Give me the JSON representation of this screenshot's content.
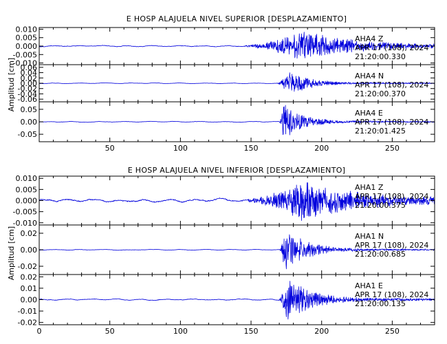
{
  "colors": {
    "trace": "#0000dd",
    "axis": "#000000"
  },
  "xlim": [
    0,
    280
  ],
  "x_ticks": [
    50,
    100,
    150,
    200,
    250
  ],
  "x_tick_labels": [
    "50",
    "100",
    "150",
    "200",
    "250"
  ],
  "x_tick_labels_bottom": [
    "0",
    "50",
    "100",
    "150",
    "200",
    "250"
  ],
  "chart_data": [
    {
      "type": "line",
      "title": "E HOSP ALAJUELA NIVEL SUPERIOR [DESPLAZAMIENTO]",
      "ylabel": "Amplitud [cm]",
      "xlim": [
        0,
        280
      ],
      "panels": [
        {
          "station": "AHA4",
          "component": "Z",
          "date": "APR 17 (108), 2024",
          "time": "21:20:00.330",
          "ylim": [
            -0.011,
            0.011
          ],
          "y_ticks": [
            0.01,
            0.005,
            0.0,
            -0.005,
            -0.01
          ],
          "y_tick_labels": [
            "0.010",
            "0.005",
            "0.000",
            "-0.005",
            "-0.010"
          ],
          "onset": 145,
          "pre_amp": 0.0005,
          "peak_amp": 0.009,
          "peak_t": 188,
          "decay": 32,
          "seed": 11
        },
        {
          "station": "AHA4",
          "component": "N",
          "date": "APR 17 (108), 2024",
          "time": "21:20:00.370",
          "ylim": [
            -0.07,
            0.07
          ],
          "y_ticks": [
            0.06,
            0.04,
            0.02,
            0.0,
            -0.02,
            -0.04,
            -0.06
          ],
          "y_tick_labels": [
            "0.06",
            "0.04",
            "0.02",
            "0.00",
            "-0.02",
            "-0.04",
            "-0.06"
          ],
          "onset": 168,
          "pre_amp": 0.0015,
          "peak_amp": 0.045,
          "peak_t": 177,
          "decay": 14,
          "seed": 23
        },
        {
          "station": "AHA4",
          "component": "E",
          "date": "APR 17 (108), 2024",
          "time": "21:20:01.425",
          "ylim": [
            -0.08,
            0.08
          ],
          "y_ticks": [
            0.05,
            0.0,
            -0.05
          ],
          "y_tick_labels": [
            "0.05",
            "0.00",
            "-0.05"
          ],
          "onset": 170,
          "pre_amp": 0.002,
          "peak_amp": 0.07,
          "peak_t": 173,
          "decay": 13,
          "seed": 37
        }
      ]
    },
    {
      "type": "line",
      "title": "E HOSP ALAJUELA NIVEL INFERIOR [DESPLAZAMIENTO]",
      "ylabel": "Amplitud [cm]",
      "xlim": [
        0,
        280
      ],
      "panels": [
        {
          "station": "AHA1",
          "component": "Z",
          "date": "APR 17 (108), 2024",
          "time": "21:20:00.375",
          "ylim": [
            -0.011,
            0.011
          ],
          "y_ticks": [
            0.01,
            0.005,
            0.0,
            -0.005,
            -0.01
          ],
          "y_tick_labels": [
            "0.010",
            "0.005",
            "0.000",
            "-0.005",
            "-0.010"
          ],
          "onset": 148,
          "pre_amp": 0.0008,
          "peak_amp": 0.009,
          "peak_t": 186,
          "decay": 35,
          "seed": 51
        },
        {
          "station": "AHA1",
          "component": "N",
          "date": "APR 17 (108), 2024",
          "time": "21:20:00.685",
          "ylim": [
            -0.03,
            0.03
          ],
          "y_ticks": [
            0.02,
            0.0,
            -0.02
          ],
          "y_tick_labels": [
            "0.02",
            "0.00",
            "-0.02"
          ],
          "onset": 170,
          "pre_amp": 0.0006,
          "peak_amp": 0.026,
          "peak_t": 174,
          "decay": 15,
          "seed": 67
        },
        {
          "station": "AHA1",
          "component": "E",
          "date": "APR 17 (108), 2024",
          "time": "21:20:00.135",
          "ylim": [
            -0.022,
            0.022
          ],
          "y_ticks": [
            0.02,
            0.01,
            0.0,
            -0.01,
            -0.02
          ],
          "y_tick_labels": [
            "0.02",
            "0.01",
            "0.00",
            "-0.01",
            "-0.02"
          ],
          "onset": 170,
          "pre_amp": 0.0007,
          "peak_amp": 0.02,
          "peak_t": 175,
          "decay": 16,
          "seed": 83
        }
      ]
    }
  ]
}
